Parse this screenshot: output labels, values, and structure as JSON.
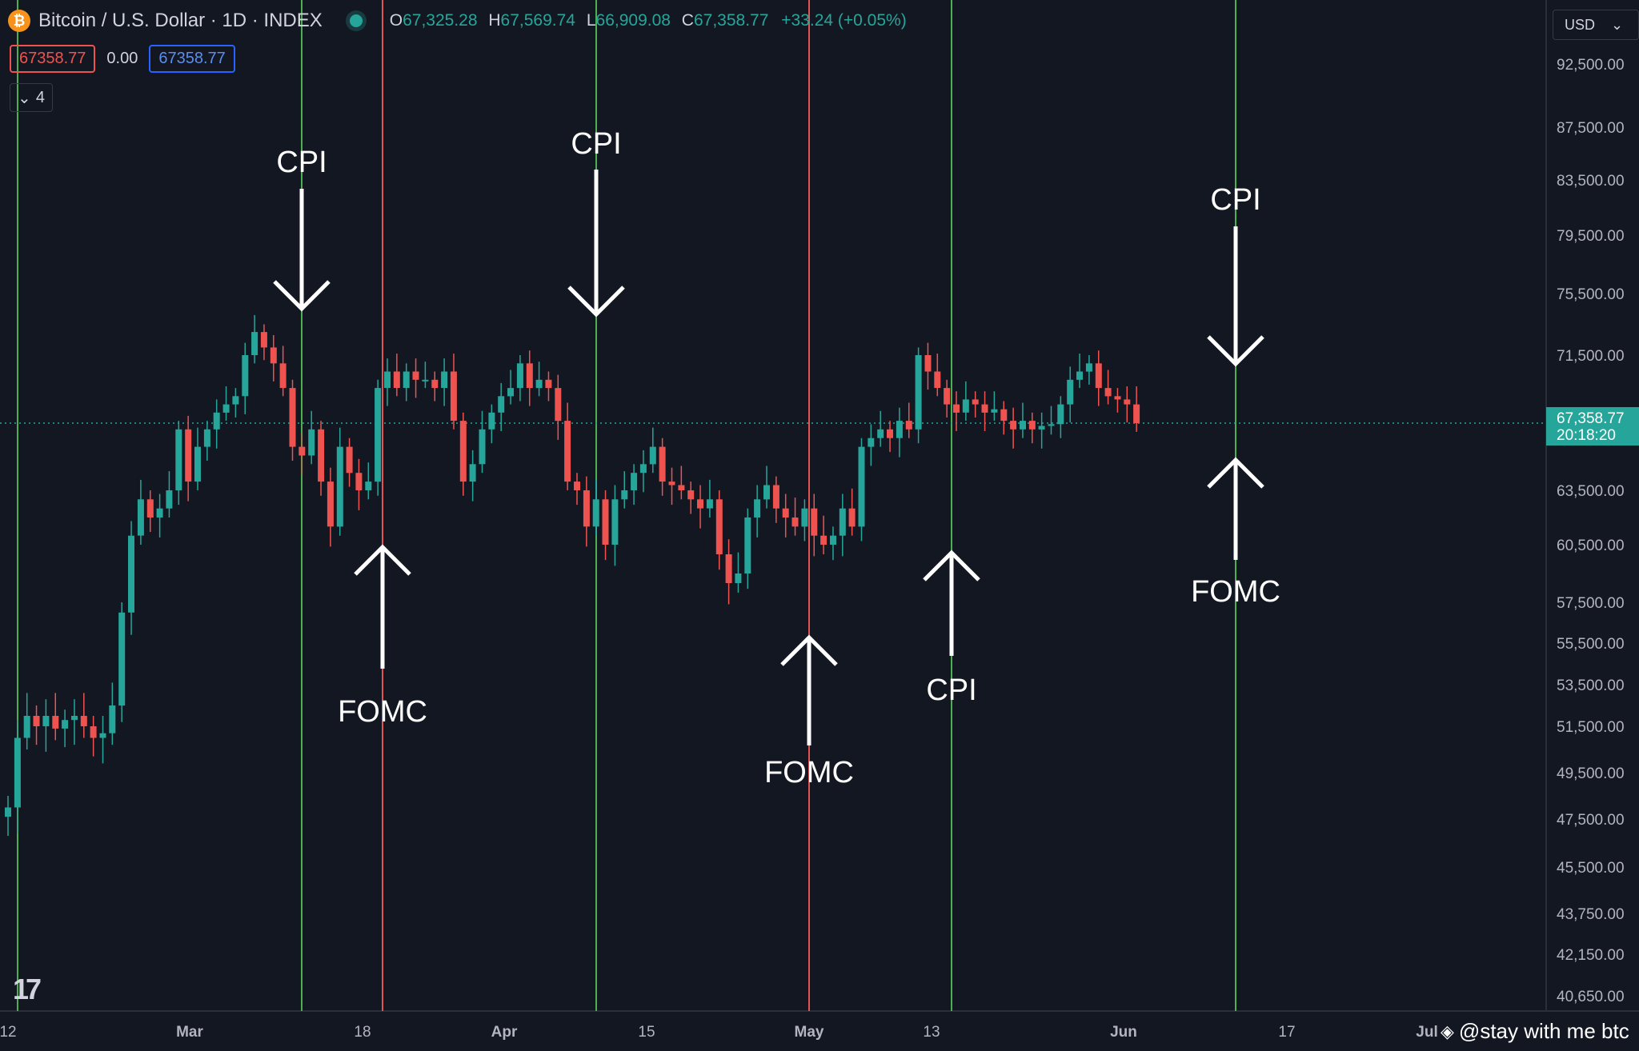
{
  "header": {
    "symbol_title": "Bitcoin / U.S. Dollar · 1D · INDEX",
    "ohlc": {
      "open_label": "O",
      "open": "67,325.28",
      "high_label": "H",
      "high": "67,569.74",
      "low_label": "L",
      "low": "66,909.08",
      "close_label": "C",
      "close": "67,358.77",
      "change": "+33.24 (+0.05%)"
    },
    "bid": "67358.77",
    "spread": "0.00",
    "ask": "67358.77",
    "indicator_count": "4",
    "currency": "USD"
  },
  "watermark": "@stay with me btc",
  "colors": {
    "up": "#26a69a",
    "down": "#ef5350",
    "background": "#131722",
    "cpi_line": "#4caf50",
    "fomc_line": "#e25353"
  },
  "chart_data": {
    "type": "candlestick",
    "title": "Bitcoin / U.S. Dollar · 1D · INDEX",
    "x_ticks": [
      "12",
      "Mar",
      "18",
      "Apr",
      "15",
      "May",
      "13",
      "Jun",
      "17",
      "Jul"
    ],
    "y_ticks": [
      "92,500.00",
      "87,500.00",
      "83,500.00",
      "79,500.00",
      "75,500.00",
      "71,500.00",
      "63,500.00",
      "60,500.00",
      "57,500.00",
      "55,500.00",
      "53,500.00",
      "51,500.00",
      "49,500.00",
      "47,500.00",
      "45,500.00",
      "43,750.00",
      "42,150.00",
      "40,650.00"
    ],
    "y_range": [
      40000,
      94000
    ],
    "last_price": "67,358.77",
    "countdown": "20:18:20",
    "events": [
      {
        "label": "CPI",
        "date": "Mar 12",
        "type": "CPI"
      },
      {
        "label": "FOMC",
        "date": "Mar 20",
        "type": "FOMC"
      },
      {
        "label": "CPI",
        "date": "Apr 10",
        "type": "CPI"
      },
      {
        "label": "FOMC",
        "date": "May 1",
        "type": "FOMC"
      },
      {
        "label": "CPI",
        "date": "May 15",
        "type": "CPI"
      },
      {
        "label": "CPI",
        "date": "Jun 12",
        "type": "CPI"
      },
      {
        "label": "FOMC",
        "date": "Jun 12",
        "type": "FOMC"
      }
    ],
    "close_series": [
      48000,
      51000,
      52000,
      51500,
      52000,
      51400,
      51800,
      52000,
      51500,
      51000,
      51200,
      52500,
      57000,
      61000,
      63000,
      62000,
      62500,
      63500,
      67000,
      64000,
      66000,
      67000,
      68000,
      68500,
      69000,
      71500,
      73000,
      72000,
      71000,
      69500,
      66000,
      65500,
      67000,
      64000,
      61500,
      66000,
      64500,
      63500,
      64000,
      69500,
      70500,
      69500,
      70500,
      70000,
      70000,
      69500,
      70500,
      67500,
      64000,
      65000,
      67000,
      68000,
      69000,
      69500,
      71000,
      69500,
      70000,
      69500,
      67500,
      64000,
      63500,
      61500,
      63000,
      60500,
      63000,
      63500,
      64500,
      65000,
      66000,
      64000,
      63800,
      63500,
      63000,
      62500,
      63000,
      60000,
      58500,
      59000,
      62000,
      63000,
      63800,
      62500,
      62000,
      61500,
      62500,
      61000,
      60500,
      61000,
      62500,
      61500,
      66000,
      66500,
      67000,
      66500,
      67500,
      67000,
      71500,
      70500,
      69500,
      68500,
      68000,
      68800,
      68500,
      68000,
      68200,
      67500,
      67000,
      67500,
      67000,
      67200,
      67300,
      68500,
      70000,
      70500,
      71000,
      69500,
      69000,
      68800,
      68500,
      67358.77
    ]
  }
}
